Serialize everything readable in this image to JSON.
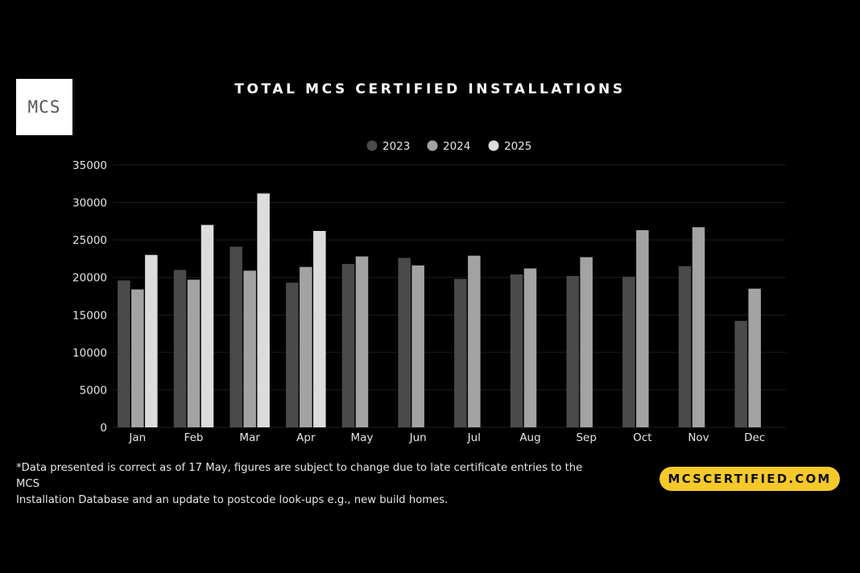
{
  "logo": {
    "text": "MCS"
  },
  "title": "TOTAL MCS CERTIFIED INSTALLATIONS",
  "colors": {
    "background": "#000000",
    "grid": "#1e1e1e",
    "series_2023": "#4a4a4a",
    "series_2024": "#a3a3a3",
    "series_2025": "#dcdcdc",
    "pill": "#f6c92b"
  },
  "chart_data": {
    "type": "bar",
    "categories": [
      "Jan",
      "Feb",
      "Mar",
      "Apr",
      "May",
      "Jun",
      "Jul",
      "Aug",
      "Sep",
      "Oct",
      "Nov",
      "Dec"
    ],
    "series": [
      {
        "name": "2023",
        "values": [
          19600,
          21000,
          24100,
          19300,
          21800,
          22600,
          19800,
          20400,
          20200,
          20100,
          21500,
          14200
        ]
      },
      {
        "name": "2024",
        "values": [
          18400,
          19700,
          20900,
          21400,
          22800,
          21600,
          22900,
          21200,
          22700,
          26300,
          26700,
          18500
        ]
      },
      {
        "name": "2025",
        "values": [
          23000,
          27000,
          31200,
          26200,
          null,
          null,
          null,
          null,
          null,
          null,
          null,
          null
        ]
      }
    ],
    "ylim": [
      0,
      35000
    ],
    "yticks": [
      "0",
      "5000",
      "10000",
      "15000",
      "20000",
      "25000",
      "30000",
      "35000"
    ],
    "grid": true,
    "legend_position": "top-center"
  },
  "footnote": {
    "line1": "*Data presented is correct as of 17 May, figures are subject to change due to late certificate entries to the MCS",
    "line2": "Installation Database and an update to postcode look-ups e.g., new build homes."
  },
  "website": "MCSCERTIFIED.COM"
}
